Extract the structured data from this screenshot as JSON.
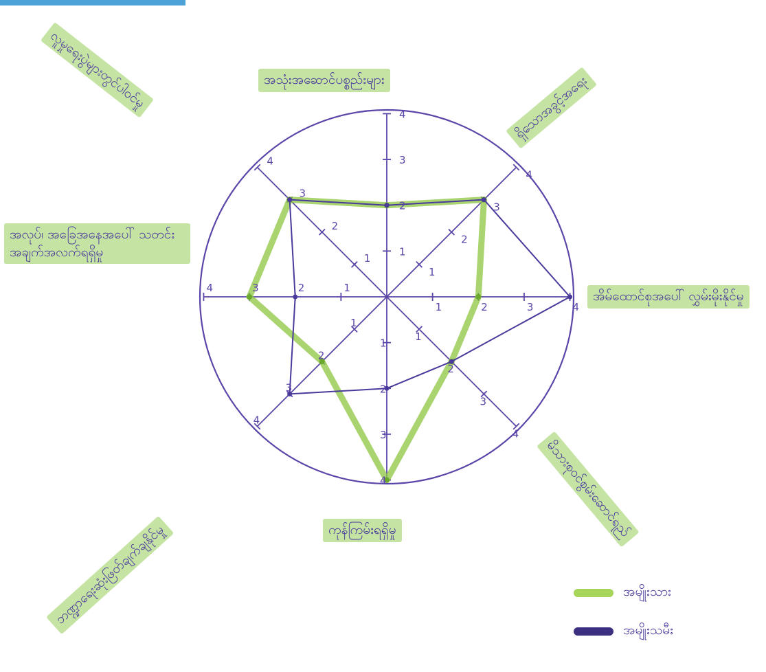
{
  "chart_data": {
    "type": "radar",
    "title": "",
    "scale_max": 4,
    "tick_labels": [
      "1",
      "2",
      "3",
      "4"
    ],
    "axes": [
      "အသုံးအဆောင်ပစ္စည်းများ",
      "ရှိသောအခွင့်အရေး",
      "အိမ်ထောင်စုအပေါ် လွှမ်းမိုးနိုင်မှု",
      "မိသားစုဝင်စွမ်းဆောင်ရည်",
      "ကုန်ကြမ်းရရှိမှု",
      "ဘဏ္ဍာရေးဆုံးဖြတ်ချက်ချနိုင်မှု",
      "အလုပ်၊ အခြေအနေအပေါ် သတင်းအချက်အလက်ရရှိမှု",
      "လူမှုရေးပွဲများတွင်ပါဝင်မှု"
    ],
    "series": [
      {
        "name": "အမျိုးသား",
        "color": "#8cc63f",
        "values": [
          2,
          3,
          2,
          2,
          4,
          2,
          3,
          3
        ]
      },
      {
        "name": "အမျိုးသမီး",
        "color": "#4a3a9c",
        "values": [
          2,
          3,
          4,
          2,
          2,
          3,
          2,
          3
        ]
      }
    ],
    "legend_position": "bottom-right"
  },
  "icons": {
    "legend_swatch": "marker-stroke"
  },
  "colors": {
    "axis": "#5b45a8",
    "text": "#4a3a9c",
    "highlight": "#8cc63f"
  }
}
